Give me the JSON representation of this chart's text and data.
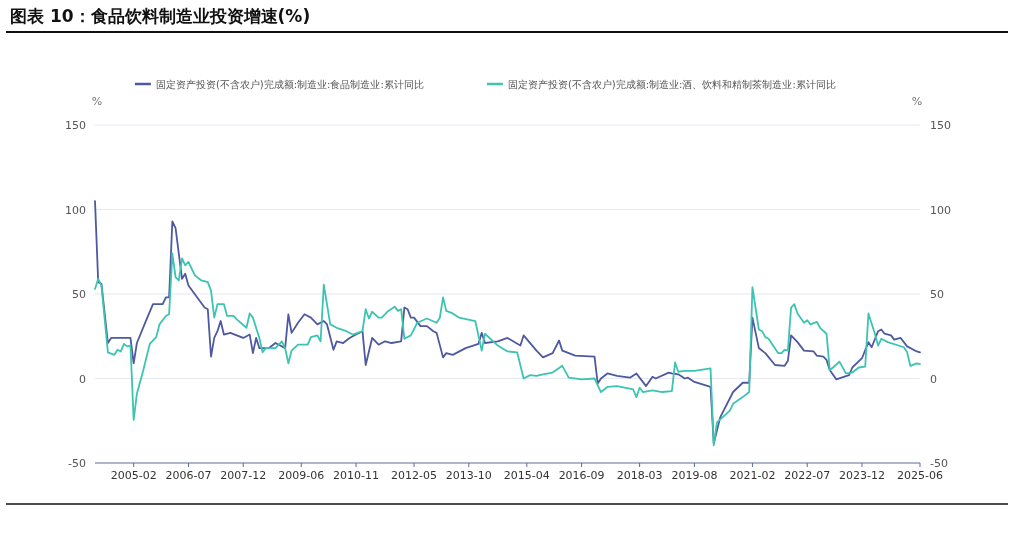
{
  "chart_data": {
    "type": "line",
    "title": "图表 10：食品饮料制造业投资增速(%)",
    "ylabel": "%",
    "y2label": "%",
    "xlim": [
      "2004-02",
      "2025-06"
    ],
    "xticks": [
      "2005-02",
      "2006-07",
      "2007-12",
      "2009-06",
      "2010-11",
      "2012-05",
      "2013-10",
      "2015-04",
      "2016-09",
      "2018-03",
      "2019-08",
      "2021-02",
      "2022-07",
      "2023-12",
      "2025-06"
    ],
    "ylim": [
      -50,
      150
    ],
    "yticks": [
      -50,
      0,
      50,
      100,
      150
    ],
    "y2lim": [
      -50,
      150
    ],
    "y2ticks": [
      -50,
      0,
      50,
      100,
      150
    ],
    "grid": "y",
    "legend": "top",
    "series": [
      {
        "name": "固定资产投资(不含农户)完成额:制造业:食品制造业:累计同比",
        "color": "#4e59a0",
        "x": [
          "2004-02",
          "2004-03",
          "2004-04",
          "2004-06",
          "2004-07",
          "2005-01",
          "2005-02",
          "2005-03",
          "2005-06",
          "2005-08",
          "2005-11",
          "2005-12",
          "2006-01",
          "2006-02",
          "2006-03",
          "2006-05",
          "2006-06",
          "2006-07",
          "2006-12",
          "2007-01",
          "2007-02",
          "2007-03",
          "2007-04",
          "2007-05",
          "2007-06",
          "2007-08",
          "2007-12",
          "2008-02",
          "2008-03",
          "2008-04",
          "2008-05",
          "2008-08",
          "2008-10",
          "2009-01",
          "2009-02",
          "2009-03",
          "2009-05",
          "2009-07",
          "2009-09",
          "2009-11",
          "2010-01",
          "2010-02",
          "2010-04",
          "2010-05",
          "2010-07",
          "2010-09",
          "2010-11",
          "2011-01",
          "2011-02",
          "2011-04",
          "2011-06",
          "2011-08",
          "2011-10",
          "2012-01",
          "2012-02",
          "2012-03",
          "2012-04",
          "2012-05",
          "2012-07",
          "2012-09",
          "2012-11",
          "2012-12",
          "2013-02",
          "2013-03",
          "2013-05",
          "2013-09",
          "2014-01",
          "2014-02",
          "2014-03",
          "2014-07",
          "2014-10",
          "2015-02",
          "2015-03",
          "2015-07",
          "2015-09",
          "2015-12",
          "2016-02",
          "2016-03",
          "2016-07",
          "2017-01",
          "2017-02",
          "2017-03",
          "2017-05",
          "2017-08",
          "2017-12",
          "2018-02",
          "2018-05",
          "2018-07",
          "2018-08",
          "2018-12",
          "2019-01",
          "2019-03",
          "2019-05",
          "2019-06",
          "2019-08",
          "2020-01",
          "2020-02",
          "2020-04",
          "2020-08",
          "2020-11",
          "2021-01",
          "2021-02",
          "2021-04",
          "2021-06",
          "2021-09",
          "2021-12",
          "2022-01",
          "2022-02",
          "2022-04",
          "2022-06",
          "2022-09",
          "2022-10",
          "2022-12",
          "2023-01",
          "2023-02",
          "2023-04",
          "2023-08",
          "2023-09",
          "2023-12",
          "2024-02",
          "2024-03",
          "2024-05",
          "2024-06",
          "2024-07",
          "2024-09",
          "2024-10",
          "2024-12",
          "2025-02",
          "2025-05",
          "2025-06"
        ],
        "values": [
          105,
          57,
          56,
          21,
          24,
          24,
          9,
          21,
          35,
          44,
          44,
          48,
          48,
          93,
          89,
          59,
          62,
          55,
          42,
          41,
          13,
          24,
          28,
          34,
          26,
          27,
          24,
          26,
          15,
          24,
          18,
          18,
          21,
          18,
          38,
          27,
          33,
          38,
          36,
          32,
          34,
          32,
          17,
          22,
          21,
          24,
          26,
          28,
          8,
          24,
          20,
          22,
          21,
          22,
          42,
          41,
          36,
          36,
          31,
          31,
          28,
          27,
          12.5,
          15,
          14,
          18,
          20.5,
          27,
          21,
          22,
          24,
          19.5,
          25.5,
          16.5,
          12.5,
          15,
          22.5,
          16.5,
          13.5,
          13,
          -3,
          0,
          3,
          1.5,
          0.5,
          3,
          -4.5,
          1,
          0,
          3.5,
          3,
          2.5,
          0,
          0.5,
          -2,
          -5,
          -38.5,
          -23,
          -8,
          -2.5,
          -2.5,
          36,
          18,
          15,
          8,
          7.5,
          10.5,
          25.5,
          21.5,
          16.5,
          16,
          13.5,
          13,
          11,
          5,
          -0.5,
          2,
          6.5,
          12,
          21.5,
          18.5,
          28,
          29,
          26.5,
          25.5,
          23,
          24,
          19,
          16,
          15.5
        ]
      },
      {
        "name": "固定资产投资(不含农户)完成额:制造业:酒、饮料和精制茶制造业:累计同比",
        "color": "#3cc4b1",
        "x": [
          "2004-02",
          "2004-03",
          "2004-04",
          "2004-06",
          "2004-08",
          "2004-09",
          "2004-10",
          "2004-11",
          "2004-12",
          "2005-01",
          "2005-02",
          "2005-03",
          "2005-05",
          "2005-07",
          "2005-09",
          "2005-10",
          "2005-12",
          "2006-01",
          "2006-02",
          "2006-03",
          "2006-04",
          "2006-05",
          "2006-06",
          "2006-07",
          "2006-09",
          "2006-11",
          "2007-01",
          "2007-02",
          "2007-03",
          "2007-04",
          "2007-06",
          "2007-07",
          "2007-09",
          "2007-10",
          "2008-01",
          "2008-02",
          "2008-03",
          "2008-05",
          "2008-06",
          "2008-07",
          "2008-10",
          "2008-12",
          "2009-01",
          "2009-02",
          "2009-03",
          "2009-05",
          "2009-08",
          "2009-09",
          "2009-11",
          "2009-12",
          "2010-01",
          "2010-03",
          "2010-05",
          "2010-08",
          "2010-10",
          "2011-01",
          "2011-02",
          "2011-03",
          "2011-04",
          "2011-06",
          "2011-07",
          "2011-09",
          "2011-11",
          "2011-12",
          "2012-01",
          "2012-02",
          "2012-04",
          "2012-06",
          "2012-09",
          "2012-12",
          "2013-01",
          "2013-02",
          "2013-03",
          "2013-05",
          "2013-07",
          "2013-12",
          "2014-02",
          "2014-03",
          "2014-07",
          "2014-10",
          "2015-01",
          "2015-03",
          "2015-05",
          "2015-07",
          "2015-09",
          "2015-12",
          "2016-03",
          "2016-05",
          "2016-09",
          "2017-01",
          "2017-03",
          "2017-05",
          "2017-08",
          "2018-01",
          "2018-02",
          "2018-03",
          "2018-04",
          "2018-07",
          "2018-10",
          "2019-01",
          "2019-02",
          "2019-03",
          "2019-05",
          "2019-08",
          "2020-01",
          "2020-02",
          "2020-03",
          "2020-07",
          "2020-08",
          "2020-11",
          "2021-01",
          "2021-02",
          "2021-04",
          "2021-05",
          "2021-06",
          "2021-07",
          "2021-10",
          "2021-11",
          "2021-12",
          "2022-01",
          "2022-02",
          "2022-03",
          "2022-04",
          "2022-06",
          "2022-07",
          "2022-08",
          "2022-10",
          "2022-11",
          "2023-01",
          "2023-02",
          "2023-03",
          "2023-05",
          "2023-07",
          "2023-09",
          "2023-11",
          "2024-01",
          "2024-02",
          "2024-04",
          "2024-05",
          "2024-06",
          "2024-08",
          "2025-01",
          "2025-02",
          "2025-03",
          "2025-05",
          "2025-06"
        ],
        "values": [
          53,
          59,
          55,
          15.5,
          14,
          17,
          16,
          20.5,
          19,
          19.5,
          -24.5,
          -9,
          5,
          20.5,
          24.5,
          32,
          37,
          38,
          74,
          60,
          58,
          71,
          67,
          69,
          61,
          58,
          57,
          52,
          36,
          44,
          44,
          37,
          37,
          35,
          30,
          38.5,
          36,
          24,
          15.5,
          18,
          18,
          22,
          18,
          9,
          16.5,
          20,
          20,
          24.5,
          25.5,
          22,
          55.5,
          32,
          30,
          28,
          26,
          28,
          41,
          35.5,
          39.5,
          36,
          36,
          40,
          42.5,
          40,
          41,
          23.5,
          25.5,
          33,
          35.5,
          33,
          36,
          48,
          40,
          38.5,
          36,
          34,
          16.5,
          26.5,
          19.5,
          16,
          15.5,
          0,
          2,
          1.5,
          2.5,
          3.5,
          7.5,
          0.5,
          -0.5,
          0,
          -8,
          -5,
          -4.5,
          -6.5,
          -11,
          -5.5,
          -8,
          -7,
          -8,
          -7.5,
          9.5,
          4,
          4.5,
          4.5,
          6,
          -39.5,
          -26,
          -19,
          -15,
          -11,
          -8,
          54,
          29,
          28,
          24.5,
          23.5,
          15,
          15,
          17,
          16.5,
          42,
          44,
          38.5,
          33,
          34.5,
          32,
          33.5,
          30,
          26.5,
          5,
          6.5,
          10,
          3,
          3.5,
          6.5,
          7,
          38.5,
          26.5,
          19.5,
          23.5,
          21.5,
          18.5,
          15.5,
          7.5,
          9,
          8.5
        ]
      }
    ]
  }
}
